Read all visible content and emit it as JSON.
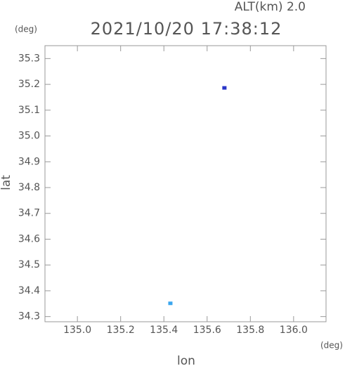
{
  "chart_data": {
    "type": "scatter",
    "title": "2021/10/20 17:38:12",
    "annotation": "ALT(km) 2.0",
    "y_unit": "(deg)",
    "x_unit": "(deg)",
    "xlabel": "lon",
    "ylabel": "lat",
    "x": [
      135.68,
      135.43
    ],
    "values": [
      35.185,
      34.35
    ],
    "colors": [
      "#2a36c8",
      "#3aa6ee"
    ],
    "xlim": [
      134.85,
      136.15
    ],
    "xticks": [
      {
        "value": 135,
        "label": "135.0"
      },
      135.2,
      135.4,
      135.6,
      135.8,
      {
        "value": 136,
        "label": "136.0"
      }
    ],
    "ylim": [
      34.28,
      35.35
    ],
    "yticks": [
      34.3,
      34.4,
      34.5,
      34.6,
      34.7,
      34.8,
      34.9,
      {
        "value": 35,
        "label": "35.0"
      },
      35.1,
      35.2,
      35.3
    ]
  }
}
